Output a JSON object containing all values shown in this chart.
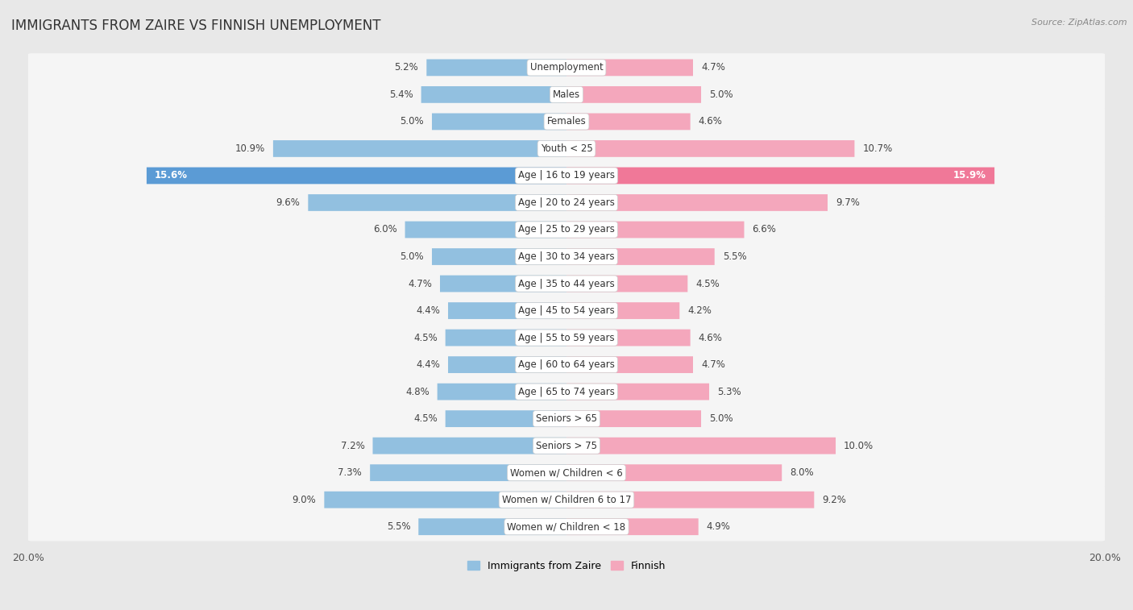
{
  "title": "IMMIGRANTS FROM ZAIRE VS FINNISH UNEMPLOYMENT",
  "source": "Source: ZipAtlas.com",
  "categories": [
    "Unemployment",
    "Males",
    "Females",
    "Youth < 25",
    "Age | 16 to 19 years",
    "Age | 20 to 24 years",
    "Age | 25 to 29 years",
    "Age | 30 to 34 years",
    "Age | 35 to 44 years",
    "Age | 45 to 54 years",
    "Age | 55 to 59 years",
    "Age | 60 to 64 years",
    "Age | 65 to 74 years",
    "Seniors > 65",
    "Seniors > 75",
    "Women w/ Children < 6",
    "Women w/ Children 6 to 17",
    "Women w/ Children < 18"
  ],
  "zaire_values": [
    5.2,
    5.4,
    5.0,
    10.9,
    15.6,
    9.6,
    6.0,
    5.0,
    4.7,
    4.4,
    4.5,
    4.4,
    4.8,
    4.5,
    7.2,
    7.3,
    9.0,
    5.5
  ],
  "finnish_values": [
    4.7,
    5.0,
    4.6,
    10.7,
    15.9,
    9.7,
    6.6,
    5.5,
    4.5,
    4.2,
    4.6,
    4.7,
    5.3,
    5.0,
    10.0,
    8.0,
    9.2,
    4.9
  ],
  "zaire_color": "#92c0e0",
  "finnish_color": "#f4a7bc",
  "zaire_highlight_color": "#5b9bd5",
  "finnish_highlight_color": "#f07898",
  "highlight_row": 4,
  "axis_max": 20.0,
  "background_color": "#e8e8e8",
  "row_bg_color": "#f5f5f5",
  "legend_zaire": "Immigrants from Zaire",
  "legend_finnish": "Finnish",
  "title_fontsize": 12,
  "label_fontsize": 8.5,
  "value_fontsize": 8.5
}
